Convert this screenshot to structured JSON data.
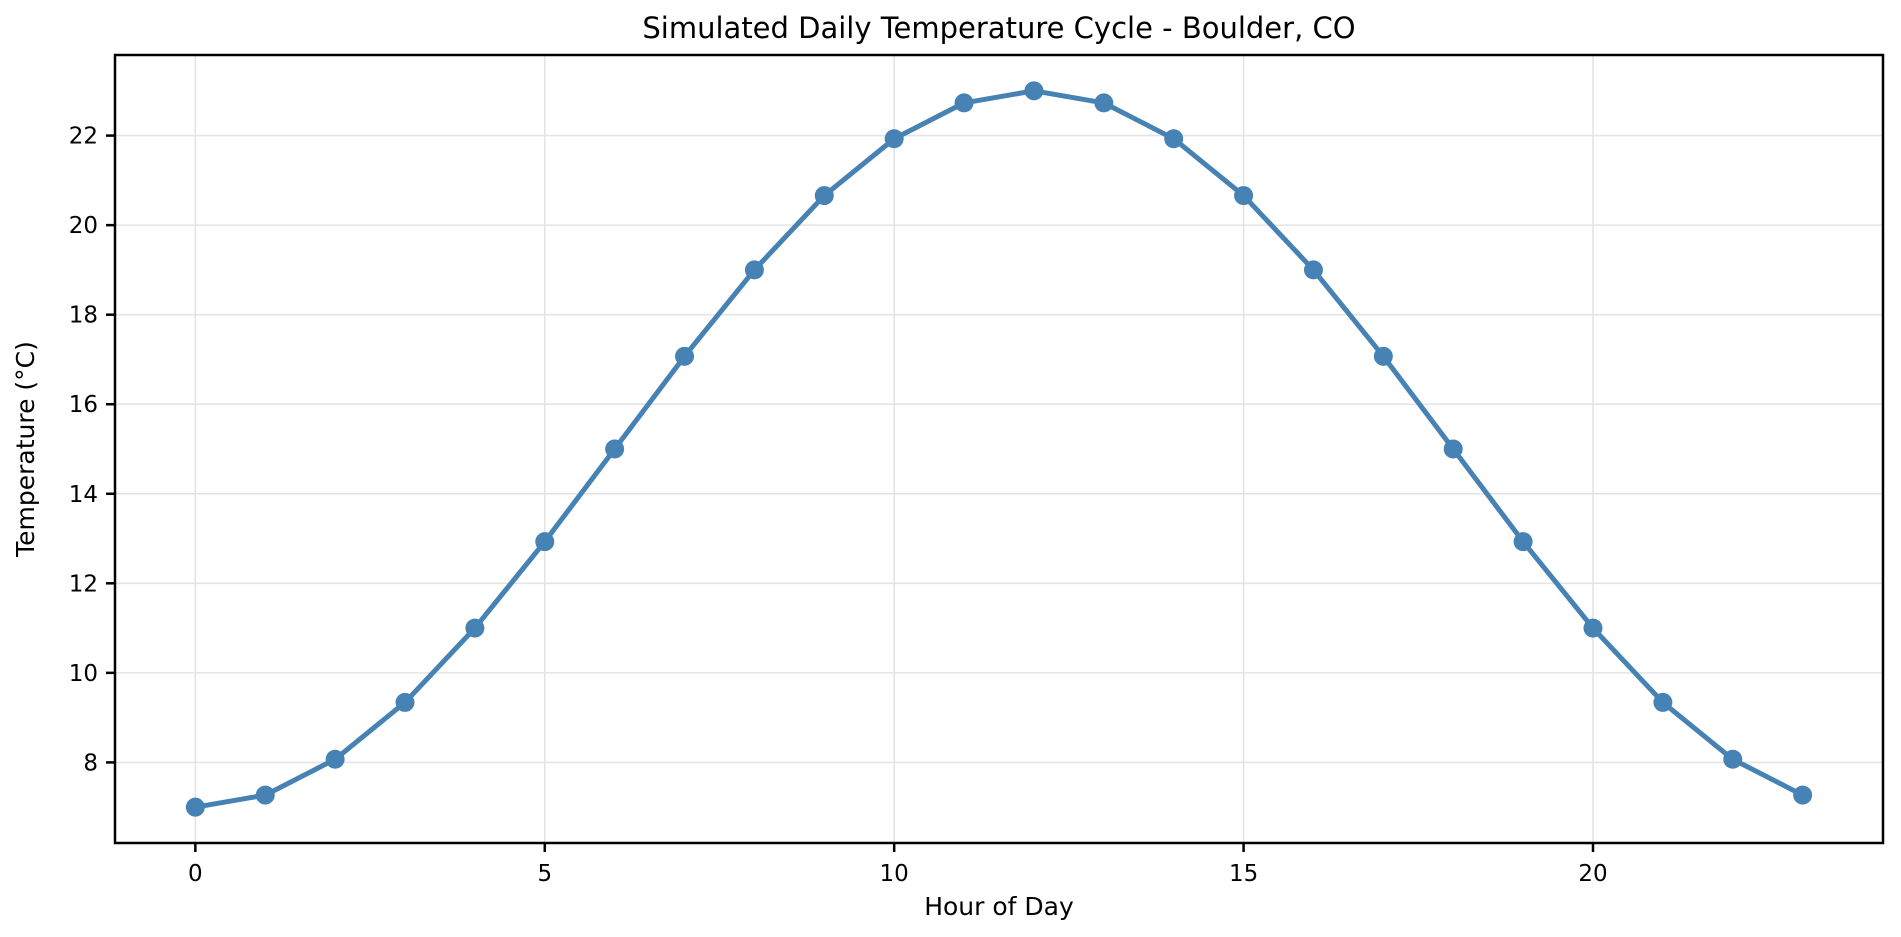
{
  "chart_data": {
    "type": "line",
    "title": "Simulated Daily Temperature Cycle - Boulder, CO",
    "xlabel": "Hour of Day",
    "ylabel": "Temperature (°C)",
    "x": [
      0,
      1,
      2,
      3,
      4,
      5,
      6,
      7,
      8,
      9,
      10,
      11,
      12,
      13,
      14,
      15,
      16,
      17,
      18,
      19,
      20,
      21,
      22,
      23
    ],
    "values": [
      7.0,
      7.27,
      8.07,
      9.34,
      11.0,
      12.93,
      15.0,
      17.07,
      19.0,
      20.66,
      21.93,
      22.73,
      23.0,
      22.73,
      21.93,
      20.66,
      19.0,
      17.07,
      15.0,
      12.93,
      11.0,
      9.34,
      8.07,
      7.27
    ],
    "xticks": [
      0,
      5,
      10,
      15,
      20
    ],
    "yticks": [
      8,
      10,
      12,
      14,
      16,
      18,
      20,
      22
    ],
    "xlim": [
      -1.15,
      24.15
    ],
    "ylim": [
      6.2,
      23.8
    ],
    "grid": true,
    "legend": null,
    "series_name": "temperature",
    "line_color": "#4682B4",
    "marker": "circle",
    "marker_color": "#4682B4",
    "grid_color": "#e4e4e4",
    "spine_color": "#000000",
    "tick_color": "#000000",
    "background_color": "#ffffff"
  }
}
